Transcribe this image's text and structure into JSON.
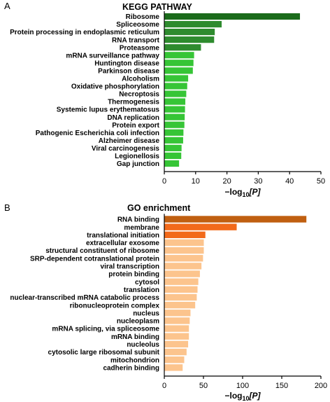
{
  "chart_data": [
    {
      "type": "bar",
      "orientation": "horizontal",
      "panel_label": "A",
      "title": "KEGG PATHWAY",
      "xlabel_prefix": "−log",
      "xlabel_sub": "10",
      "xlabel_arg": "[P]",
      "xlim": [
        0,
        50
      ],
      "xticks": [
        0,
        10,
        20,
        30,
        40,
        50
      ],
      "grid": false,
      "categories": [
        "Ribosome",
        "Spliceosome",
        "Protein processing in endoplasmic reticulum",
        "RNA transport",
        "Proteasome",
        "mRNA surveillance pathway",
        "Huntington disease",
        "Parkinson disease",
        "Alcoholism",
        "Oxidative phosphorylation",
        "Necroptosis",
        "Thermogenesis",
        "Systemic lupus erythematosus",
        "DNA replication",
        "Protein export",
        "Pathogenic Escherichia coli infection",
        "Alzheimer disease",
        "Viral carcinogenesis",
        "Legionellosis",
        "Gap junction"
      ],
      "values": [
        43.2,
        18.2,
        16.0,
        15.8,
        11.6,
        9.4,
        9.2,
        9.0,
        7.5,
        7.2,
        6.9,
        6.6,
        6.5,
        6.4,
        6.3,
        6.0,
        5.9,
        5.4,
        5.3,
        4.6
      ],
      "colors": [
        "#1b6b1b",
        "#2e8b2e",
        "#2e8b2e",
        "#2e8b2e",
        "#2e8b2e",
        "#36c536",
        "#36c536",
        "#36c536",
        "#36c536",
        "#36c536",
        "#36c536",
        "#36c536",
        "#36c536",
        "#36c536",
        "#36c536",
        "#36c536",
        "#36c536",
        "#36c536",
        "#36c536",
        "#36c536"
      ]
    },
    {
      "type": "bar",
      "orientation": "horizontal",
      "panel_label": "B",
      "title": "GO enrichment",
      "xlabel_prefix": "−log",
      "xlabel_sub": "10",
      "xlabel_arg": "[P]",
      "xlim": [
        0,
        200
      ],
      "xticks": [
        0,
        50,
        100,
        150,
        200
      ],
      "grid": false,
      "categories": [
        "RNA binding",
        "membrane",
        "translational initiation",
        "extracellular exosome",
        "structural constituent of ribosome",
        "SRP-dependent cotranslational protein",
        "viral transcription",
        "protein binding",
        "cytosol",
        "translation",
        "nuclear-transcribed mRNA catabolic process",
        "ribonucleoprotein complex",
        "nucleus",
        "nucleoplasm",
        "mRNA splicing, via spliceosome",
        "mRNA binding",
        "nucleolus",
        "cytosolic large ribosomal subunit",
        "mitochondrion",
        "cadherin binding"
      ],
      "values": [
        181,
        92,
        52,
        50,
        50,
        49,
        47,
        45,
        43,
        42,
        41,
        39,
        33,
        32,
        31,
        31,
        30,
        28,
        25,
        23
      ],
      "colors": [
        "#c05f10",
        "#f26a1b",
        "#f26a1b",
        "#fcc48d",
        "#fcc48d",
        "#fcc48d",
        "#fcc48d",
        "#fcc48d",
        "#fcc48d",
        "#fcc48d",
        "#fcc48d",
        "#fcc48d",
        "#fcc48d",
        "#fcc48d",
        "#fcc48d",
        "#fcc48d",
        "#fcc48d",
        "#fcc48d",
        "#fcc48d",
        "#fcc48d"
      ]
    }
  ]
}
